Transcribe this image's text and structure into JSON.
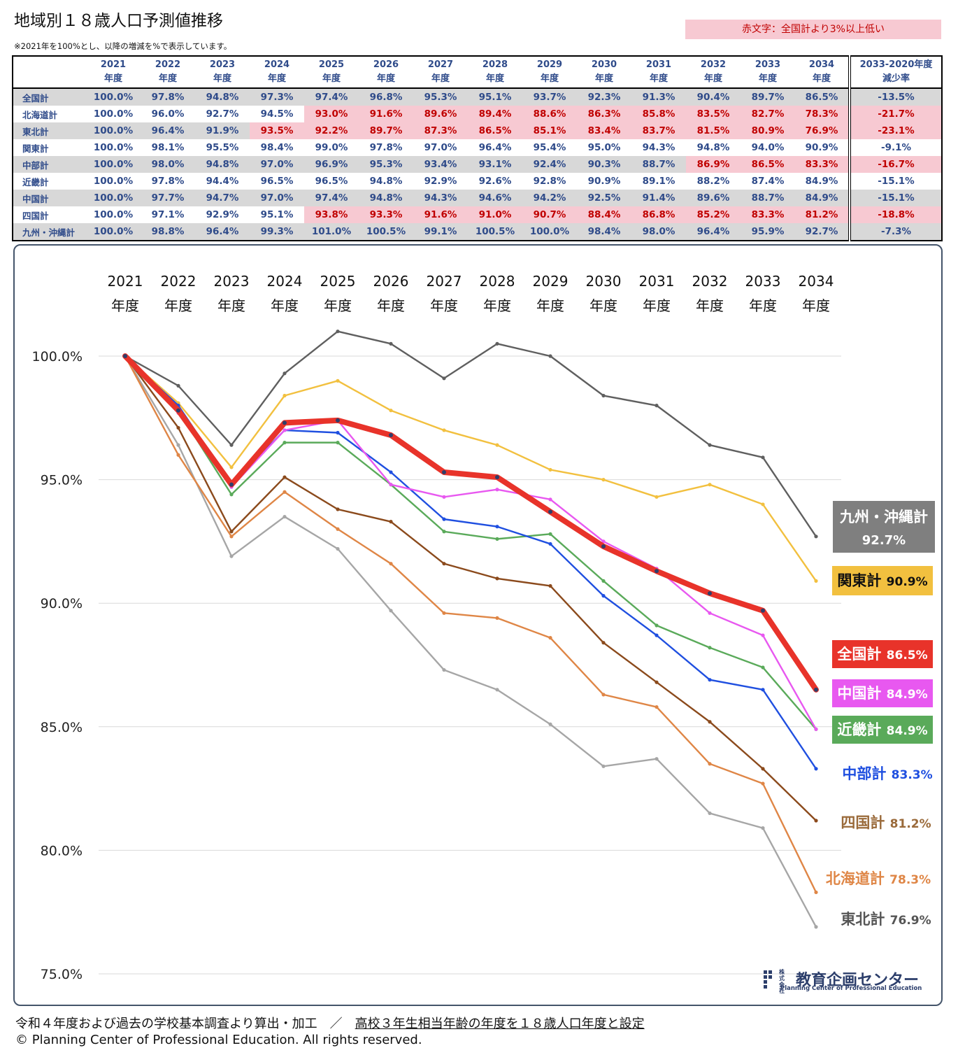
{
  "title": "地域別１８歳人口予測値推移",
  "note": "※2021年を100%とし、以降の増減を%で表示しています。",
  "legend_note": "赤文字：全国計より3%以上低い",
  "table": {
    "header_years": [
      "2021",
      "2022",
      "2023",
      "2024",
      "2025",
      "2026",
      "2027",
      "2028",
      "2029",
      "2030",
      "2031",
      "2032",
      "2033",
      "2034"
    ],
    "header_sub": "年度",
    "rate_header_line1": "2033-2020年度",
    "rate_header_line2": "減少率",
    "rows": [
      {
        "name": "全国計",
        "values": [
          "100.0%",
          "97.8%",
          "94.8%",
          "97.3%",
          "97.4%",
          "96.8%",
          "95.3%",
          "95.1%",
          "93.7%",
          "92.3%",
          "91.3%",
          "90.4%",
          "89.7%",
          "86.5%"
        ],
        "rate": "-13.5%",
        "red_from": -1,
        "rate_red": false,
        "alt": true
      },
      {
        "name": "北海道計",
        "values": [
          "100.0%",
          "96.0%",
          "92.7%",
          "94.5%",
          "93.0%",
          "91.6%",
          "89.6%",
          "89.4%",
          "88.6%",
          "86.3%",
          "85.8%",
          "83.5%",
          "82.7%",
          "78.3%"
        ],
        "rate": "-21.7%",
        "red_from": 4,
        "rate_red": true,
        "alt": false
      },
      {
        "name": "東北計",
        "values": [
          "100.0%",
          "96.4%",
          "91.9%",
          "93.5%",
          "92.2%",
          "89.7%",
          "87.3%",
          "86.5%",
          "85.1%",
          "83.4%",
          "83.7%",
          "81.5%",
          "80.9%",
          "76.9%"
        ],
        "rate": "-23.1%",
        "red_from": 3,
        "rate_red": true,
        "alt": true
      },
      {
        "name": "関東計",
        "values": [
          "100.0%",
          "98.1%",
          "95.5%",
          "98.4%",
          "99.0%",
          "97.8%",
          "97.0%",
          "96.4%",
          "95.4%",
          "95.0%",
          "94.3%",
          "94.8%",
          "94.0%",
          "90.9%"
        ],
        "rate": "-9.1%",
        "red_from": -1,
        "rate_red": false,
        "alt": false
      },
      {
        "name": "中部計",
        "values": [
          "100.0%",
          "98.0%",
          "94.8%",
          "97.0%",
          "96.9%",
          "95.3%",
          "93.4%",
          "93.1%",
          "92.4%",
          "90.3%",
          "88.7%",
          "86.9%",
          "86.5%",
          "83.3%"
        ],
        "rate": "-16.7%",
        "red_from": 11,
        "rate_red": true,
        "alt": true
      },
      {
        "name": "近畿計",
        "values": [
          "100.0%",
          "97.8%",
          "94.4%",
          "96.5%",
          "96.5%",
          "94.8%",
          "92.9%",
          "92.6%",
          "92.8%",
          "90.9%",
          "89.1%",
          "88.2%",
          "87.4%",
          "84.9%"
        ],
        "rate": "-15.1%",
        "red_from": -1,
        "rate_red": false,
        "alt": false
      },
      {
        "name": "中国計",
        "values": [
          "100.0%",
          "97.7%",
          "94.7%",
          "97.0%",
          "97.4%",
          "94.8%",
          "94.3%",
          "94.6%",
          "94.2%",
          "92.5%",
          "91.4%",
          "89.6%",
          "88.7%",
          "84.9%"
        ],
        "rate": "-15.1%",
        "red_from": -1,
        "rate_red": false,
        "alt": true
      },
      {
        "name": "四国計",
        "values": [
          "100.0%",
          "97.1%",
          "92.9%",
          "95.1%",
          "93.8%",
          "93.3%",
          "91.6%",
          "91.0%",
          "90.7%",
          "88.4%",
          "86.8%",
          "85.2%",
          "83.3%",
          "81.2%"
        ],
        "rate": "-18.8%",
        "red_from": 4,
        "rate_red": true,
        "alt": false
      },
      {
        "name": "九州・沖縄計",
        "values": [
          "100.0%",
          "98.8%",
          "96.4%",
          "99.3%",
          "101.0%",
          "100.5%",
          "99.1%",
          "100.5%",
          "100.0%",
          "98.4%",
          "98.0%",
          "96.4%",
          "95.9%",
          "92.7%"
        ],
        "rate": "-7.3%",
        "red_from": -1,
        "rate_red": false,
        "alt": true
      }
    ]
  },
  "chart_data": {
    "type": "line",
    "x": [
      "2021",
      "2022",
      "2023",
      "2024",
      "2025",
      "2026",
      "2027",
      "2028",
      "2029",
      "2030",
      "2031",
      "2032",
      "2033",
      "2034"
    ],
    "x_sub": "年度",
    "ylim": [
      75,
      101
    ],
    "yticks": [
      "100.0%",
      "95.0%",
      "90.0%",
      "85.0%",
      "80.0%",
      "75.0%"
    ],
    "ytick_values": [
      100,
      95,
      90,
      85,
      80,
      75
    ],
    "grid": true,
    "series": [
      {
        "name": "九州・沖縄計",
        "color": "#5f5f5f",
        "label": "九州・沖縄計",
        "label_value": "92.7%",
        "values": [
          100.0,
          98.8,
          96.4,
          99.3,
          101.0,
          100.5,
          99.1,
          100.5,
          100.0,
          98.4,
          98.0,
          96.4,
          95.9,
          92.7
        ]
      },
      {
        "name": "関東計",
        "color": "#f2c03f",
        "label": "関東計",
        "label_value": "90.9%",
        "values": [
          100.0,
          98.1,
          95.5,
          98.4,
          99.0,
          97.8,
          97.0,
          96.4,
          95.4,
          95.0,
          94.3,
          94.8,
          94.0,
          90.9
        ]
      },
      {
        "name": "東北計",
        "color": "#a6a6a6",
        "label": "東北計",
        "label_value": "76.9%",
        "values": [
          100.0,
          96.4,
          91.9,
          93.5,
          92.2,
          89.7,
          87.3,
          86.5,
          85.1,
          83.4,
          83.7,
          81.5,
          80.9,
          76.9
        ]
      },
      {
        "name": "北海道計",
        "color": "#df8646",
        "label": "北海道計",
        "label_value": "78.3%",
        "values": [
          100.0,
          96.0,
          92.7,
          94.5,
          93.0,
          91.6,
          89.6,
          89.4,
          88.6,
          86.3,
          85.8,
          83.5,
          82.7,
          78.3
        ]
      },
      {
        "name": "四国計",
        "color": "#8b4a1c",
        "label": "四国計",
        "label_value": "81.2%",
        "values": [
          100.0,
          97.1,
          92.9,
          95.1,
          93.8,
          93.3,
          91.6,
          91.0,
          90.7,
          88.4,
          86.8,
          85.2,
          83.3,
          81.2
        ]
      },
      {
        "name": "近畿計",
        "color": "#5aaa5a",
        "label": "近畿計",
        "label_value": "84.9%",
        "values": [
          100.0,
          97.8,
          94.4,
          96.5,
          96.5,
          94.8,
          92.9,
          92.6,
          92.8,
          90.9,
          89.1,
          88.2,
          87.4,
          84.9
        ]
      },
      {
        "name": "中部計",
        "color": "#1f4fe0",
        "label": "中部計",
        "label_value": "83.3%",
        "values": [
          100.0,
          98.0,
          94.8,
          97.0,
          96.9,
          95.3,
          93.4,
          93.1,
          92.4,
          90.3,
          88.7,
          86.9,
          86.5,
          83.3
        ]
      },
      {
        "name": "中国計",
        "color": "#e858f0",
        "label": "中国計",
        "label_value": "84.9%",
        "values": [
          100.0,
          97.7,
          94.7,
          97.0,
          97.4,
          94.8,
          94.3,
          94.6,
          94.2,
          92.5,
          91.4,
          89.6,
          88.7,
          84.9
        ]
      },
      {
        "name": "全国計",
        "color": "#e8332a",
        "label": "全国計",
        "label_value": "86.5%",
        "values": [
          100.0,
          97.8,
          94.8,
          97.3,
          97.4,
          96.8,
          95.3,
          95.1,
          93.7,
          92.3,
          91.3,
          90.4,
          89.7,
          86.5
        ]
      }
    ]
  },
  "footer": {
    "source": "令和４年度および過去の学校基本調査より算出・加工",
    "separator": "／",
    "setting": "高校３年生相当年齢の年度を１８歳人口年度と設定",
    "copyright": "© Planning Center of Professional Education. All rights reserved."
  },
  "logo": {
    "small1": "株式",
    "small2": "会社",
    "name": "教育企画センター",
    "english": "Planning Center of Professional Education"
  }
}
